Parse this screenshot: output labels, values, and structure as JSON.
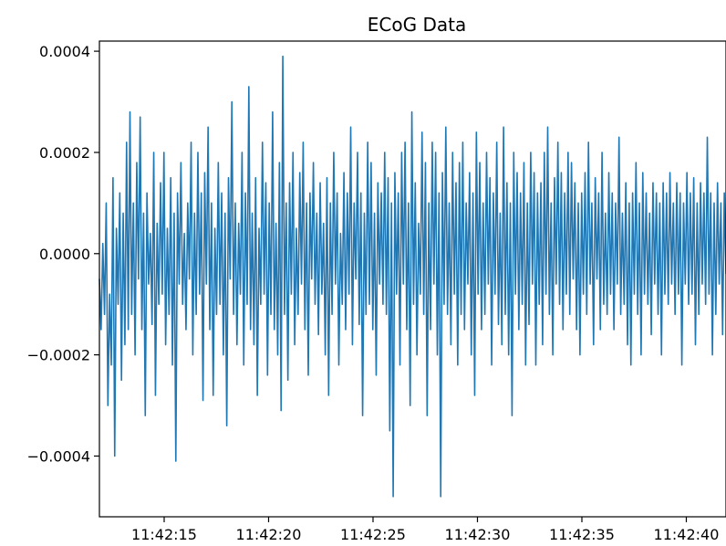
{
  "chart_data": {
    "type": "line",
    "title": "ECoG Data",
    "xlabel": "",
    "ylabel": "",
    "x_range": [
      "11:42:11.9",
      "11:42:41.9"
    ],
    "ylim": [
      -0.00052,
      0.00042
    ],
    "x_ticks": [
      "11:42:15",
      "11:42:20",
      "11:42:25",
      "11:42:30",
      "11:42:35",
      "11:42:40"
    ],
    "y_ticks": [
      0.0004,
      0.0002,
      0.0,
      -0.0002,
      -0.0004
    ],
    "y_tick_labels": [
      "0.0004",
      "0.0002",
      "0.0000",
      "−0.0002",
      "−0.0004"
    ],
    "grid": false,
    "legend": "none",
    "series": [
      {
        "color": "#1f77b4",
        "t_start": "11:42:11.9",
        "t_end": "11:42:41.9",
        "values": [
          -5e-05,
          -0.00015,
          2e-05,
          -0.00012,
          0.0001,
          -0.0003,
          -8e-05,
          -0.00022,
          0.00015,
          -0.0004,
          5e-05,
          -0.0001,
          0.00012,
          -0.00025,
          8e-05,
          -0.00018,
          0.00022,
          -0.00015,
          0.00028,
          -0.00012,
          0.0001,
          -0.0002,
          0.00018,
          -5e-05,
          0.00027,
          -0.00015,
          8e-05,
          -0.00032,
          0.00012,
          -6e-05,
          4e-05,
          -0.00014,
          0.0002,
          -0.00028,
          6e-05,
          -0.0001,
          0.00014,
          -8e-05,
          0.0002,
          -0.00018,
          5e-05,
          -0.00012,
          0.00015,
          -0.00022,
          8e-05,
          -0.00041,
          0.00012,
          -6e-05,
          0.00018,
          -0.0001,
          4e-05,
          -0.00015,
          0.0001,
          -5e-05,
          0.00022,
          -0.0002,
          8e-05,
          -0.00012,
          0.0002,
          -8e-05,
          0.00012,
          -0.00029,
          0.00016,
          -6e-05,
          0.00025,
          -0.00015,
          0.0001,
          -0.00028,
          5e-05,
          -0.00012,
          0.00018,
          -0.0001,
          0.00012,
          -0.0002,
          8e-05,
          -0.00034,
          0.00015,
          -5e-05,
          0.0003,
          -0.00012,
          0.0001,
          -0.00018,
          6e-05,
          -8e-05,
          0.0002,
          -0.00022,
          0.00012,
          -0.0001,
          0.00033,
          -0.00015,
          8e-05,
          -0.00018,
          0.00015,
          -0.00028,
          5e-05,
          -0.0001,
          0.00022,
          -8e-05,
          0.00014,
          -0.00024,
          0.0001,
          -0.00012,
          0.00028,
          -0.00015,
          6e-05,
          -0.0002,
          0.00018,
          -0.00031,
          0.00039,
          -0.00012,
          0.0001,
          -0.00025,
          0.00014,
          -8e-05,
          0.0002,
          -0.00018,
          5e-05,
          -0.00012,
          0.00016,
          -6e-05,
          0.00022,
          -0.00015,
          0.0001,
          -0.00024,
          0.00012,
          -5e-05,
          0.00018,
          -0.0001,
          8e-05,
          -0.00016,
          0.00014,
          -8e-05,
          6e-05,
          -0.0002,
          0.00015,
          -0.00028,
          0.0001,
          -0.00012,
          0.0002,
          -6e-05,
          0.00012,
          -0.00022,
          4e-05,
          -0.0001,
          0.00016,
          -0.00015,
          0.00012,
          -8e-05,
          0.00025,
          -0.00018,
          0.0001,
          -5e-05,
          0.0002,
          -0.00014,
          0.00012,
          -0.00032,
          8e-05,
          -0.00012,
          0.00022,
          -0.0001,
          0.00018,
          -0.00015,
          8e-05,
          -0.00024,
          0.00014,
          -6e-05,
          0.00012,
          -0.0001,
          0.0002,
          -0.00012,
          0.00015,
          -0.00035,
          0.0001,
          -0.00048,
          0.00016,
          -8e-05,
          0.00012,
          -0.00022,
          0.0002,
          -6e-05,
          0.00022,
          -0.00015,
          0.0001,
          -0.0003,
          0.00028,
          -0.0001,
          0.00014,
          -0.0002,
          6e-05,
          -8e-05,
          0.00024,
          -0.00012,
          0.00018,
          -0.00032,
          0.0001,
          -0.00015,
          0.00022,
          -6e-05,
          0.0002,
          -0.0002,
          0.00012,
          -0.00048,
          0.00016,
          -0.0001,
          0.00025,
          -0.00012,
          0.0001,
          -0.00018,
          0.0002,
          -8e-05,
          0.00014,
          -0.00022,
          0.00018,
          -0.00012,
          0.00022,
          -0.00015,
          0.0001,
          -6e-05,
          0.00016,
          -0.0002,
          0.00012,
          -0.00028,
          0.00024,
          -8e-05,
          0.00018,
          -0.00015,
          0.0001,
          -0.00012,
          0.0002,
          -6e-05,
          0.00015,
          -0.00022,
          0.00012,
          -8e-05,
          0.00022,
          -0.00014,
          8e-05,
          -0.00018,
          0.00025,
          -0.00012,
          0.00014,
          -0.0002,
          0.0001,
          -0.00032,
          0.0002,
          -8e-05,
          0.00016,
          -0.00015,
          0.00012,
          -0.0001,
          0.00018,
          -0.00022,
          0.0001,
          -0.00014,
          0.0002,
          -6e-05,
          0.00016,
          -0.00022,
          0.00012,
          -0.0001,
          0.00014,
          -0.00018,
          0.0002,
          -8e-05,
          0.00025,
          -0.00012,
          0.0001,
          -0.0002,
          0.00015,
          -6e-05,
          0.00022,
          -0.0001,
          0.00016,
          -0.00015,
          0.00012,
          -8e-05,
          0.0002,
          -0.00012,
          0.00018,
          -5e-05,
          0.00014,
          -0.00015,
          0.0001,
          -0.0002,
          0.00012,
          -8e-05,
          0.00016,
          -0.00012,
          0.00022,
          -6e-05,
          0.0001,
          -0.00018,
          0.00015,
          -5e-05,
          0.00012,
          -0.00015,
          0.0002,
          -0.0001,
          8e-05,
          -0.00012,
          0.00016,
          -8e-05,
          0.00012,
          -0.00015,
          0.0001,
          -6e-05,
          0.00023,
          -0.00012,
          8e-05,
          -0.0001,
          0.00014,
          -0.00018,
          0.0001,
          -0.00022,
          0.00012,
          -8e-05,
          0.00018,
          -0.00012,
          0.0001,
          -0.0002,
          0.00016,
          -8e-05,
          0.00012,
          -0.0001,
          8e-05,
          -0.00016,
          0.00014,
          -6e-05,
          0.00012,
          -0.00012,
          0.0001,
          -0.0002,
          0.00014,
          -8e-05,
          0.00012,
          -0.0001,
          0.00016,
          -6e-05,
          0.0001,
          -0.00012,
          0.00014,
          -8e-05,
          0.00012,
          -0.00022,
          0.0001,
          -6e-05,
          0.00016,
          -0.0001,
          0.00012,
          -8e-05,
          0.00015,
          -0.00018,
          0.0001,
          -0.00012,
          0.00014,
          -6e-05,
          0.00012,
          -0.0001,
          0.00023,
          -8e-05,
          0.00012,
          -0.0002,
          0.0001,
          -0.00012,
          0.00014,
          -6e-05,
          0.0001,
          -0.00016,
          0.00012,
          -4e-05
        ]
      }
    ]
  }
}
